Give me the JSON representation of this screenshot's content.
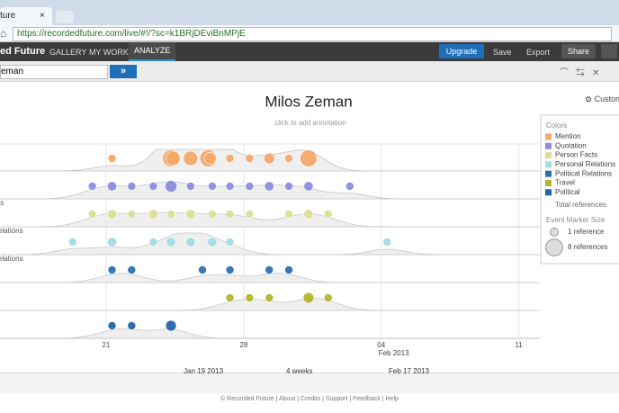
{
  "browser": {
    "tab": "ture",
    "url": "https://recordedfuture.com/live/#!/?sc=k1BRjDEviBnMPjE"
  },
  "nav": {
    "brand": "ed Future",
    "items": [
      "GALLERY",
      "MY WORK",
      "ANALYZE"
    ],
    "upgrade": "Upgrade",
    "save": "Save",
    "export": "Export",
    "share": "Share"
  },
  "search": {
    "query": "eman",
    "button": "»"
  },
  "chart_data": {
    "type": "timeline",
    "title": "Milos Zeman",
    "annotation": "click to add annotation",
    "customize": "Customi",
    "row_labels": [
      "ts",
      "elations",
      "elations"
    ],
    "legend_title": "Colors",
    "series": [
      {
        "name": "Mention",
        "color": "#f5a96a",
        "x": [
          21.3,
          24.3,
          24.4,
          25.3,
          26.2,
          26.3,
          27.3,
          28.3,
          29.3,
          30.3,
          31.3
        ],
        "sizes": [
          1,
          8,
          6,
          6,
          8,
          4,
          1,
          1,
          3,
          1,
          8
        ]
      },
      {
        "name": "Quotation",
        "color": "#8e8ee0",
        "x": [
          20.3,
          21.3,
          22.3,
          23.4,
          24.3,
          25.3,
          26.4,
          27.3,
          28.3,
          29.3,
          30.3,
          31.3,
          33.4
        ],
        "sizes": [
          1,
          2,
          1,
          1,
          4,
          1,
          1,
          1,
          1,
          2,
          1,
          2,
          1
        ]
      },
      {
        "name": "Person Facts",
        "color": "#dede96",
        "x": [
          20.3,
          21.3,
          22.3,
          23.4,
          24.3,
          25.3,
          26.4,
          27.3,
          28.3,
          30.3,
          31.3,
          32.3
        ],
        "sizes": [
          1,
          2,
          1,
          2,
          1,
          2,
          1,
          1,
          1,
          1,
          2,
          1
        ]
      },
      {
        "name": "Personal Relations",
        "color": "#a6dbe4",
        "x": [
          19.3,
          21.3,
          23.4,
          24.3,
          25.3,
          25.3,
          26.4,
          27.3,
          35.3
        ],
        "sizes": [
          1,
          2,
          1,
          2,
          3,
          2,
          2,
          1,
          1
        ]
      },
      {
        "name": "Political Relations",
        "color": "#2f6fb0",
        "x": [
          21.3,
          22.3,
          25.9,
          27.3,
          29.3,
          30.3
        ],
        "sizes": [
          1,
          1,
          1,
          1,
          1,
          1
        ]
      },
      {
        "name": "Travel",
        "color": "#b6b62c",
        "x": [
          27.3,
          28.3,
          29.3,
          31.3,
          32.3
        ],
        "sizes": [
          1,
          1,
          1,
          3,
          1
        ]
      },
      {
        "name": "Political",
        "color": "#2266a8",
        "x": [
          21.3,
          22.3,
          24.3
        ],
        "sizes": [
          1,
          1,
          3
        ]
      }
    ],
    "total_label": "Total references",
    "size_title": "Event Marker Size",
    "size_legend": [
      {
        "value": 1,
        "label": "1 reference"
      },
      {
        "value": 8,
        "label": "8 references"
      }
    ],
    "xlim": [
      15.6,
      47.1
    ],
    "xticks": [
      21,
      28,
      {
        "value": 35,
        "label": "04"
      },
      {
        "value": 42,
        "label": "11"
      }
    ],
    "x_sublabel": "Feb 2013"
  },
  "range": {
    "start": "Jan 19 2013",
    "span": "4 weeks",
    "end": "Feb 17 2013"
  },
  "footer": "© Recorded Future | About | Credits | Support | Feedback | Help"
}
